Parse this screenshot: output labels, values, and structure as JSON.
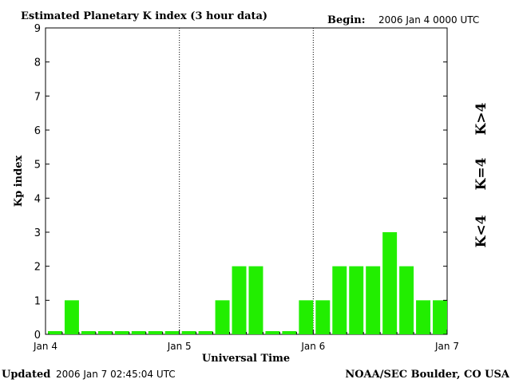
{
  "header": {
    "title": "Estimated Planetary K index (3 hour data)",
    "begin_label": "Begin:",
    "begin_value": "2006 Jan 4 0000 UTC"
  },
  "footer": {
    "updated_label": "Updated",
    "updated_value": "2006 Jan  7 02:45:04 UTC",
    "credit": "NOAA/SEC Boulder, CO USA"
  },
  "legend": {
    "high": "K>4",
    "mid": "K=4",
    "low": "K<4",
    "colors": {
      "high": "#ff2200",
      "mid": "#ffd400",
      "low": "#22ee00"
    }
  },
  "chart_data": {
    "type": "bar",
    "title": "Estimated Planetary K index (3 hour data)",
    "xlabel": "Universal Time",
    "ylabel": "Kp index",
    "ylim": [
      0,
      9
    ],
    "y_ticks": [
      "0",
      "1",
      "2",
      "3",
      "4",
      "5",
      "6",
      "7",
      "8",
      "9"
    ],
    "x_ticks": [
      "Jan 4",
      "Jan 5",
      "Jan 6",
      "Jan 7"
    ],
    "day_separators": [
      "Jan 5",
      "Jan 6"
    ],
    "interval_hours": 3,
    "bar_color": "#22ee00",
    "values": [
      0,
      1,
      0,
      0,
      0,
      0,
      0,
      0,
      0,
      0,
      1,
      2,
      2,
      0,
      0,
      1,
      1,
      2,
      2,
      2,
      3,
      2,
      1,
      1
    ]
  }
}
